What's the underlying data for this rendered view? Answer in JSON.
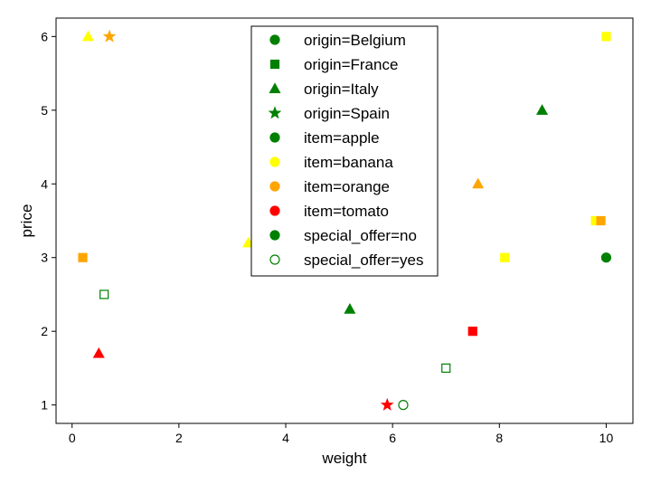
{
  "chart_data": {
    "type": "scatter",
    "xlabel": "weight",
    "ylabel": "price",
    "xlim": [
      -0.3,
      10.5
    ],
    "ylim": [
      0.75,
      6.25
    ],
    "xticks": [
      "0",
      "2",
      "4",
      "6",
      "8",
      "10"
    ],
    "yticks": [
      "1",
      "2",
      "3",
      "4",
      "5",
      "6"
    ],
    "grid": false,
    "legend_position": "top-center",
    "colors": {
      "apple": "#008000",
      "banana": "#ffff00",
      "orange": "#ffa500",
      "tomato": "#ff0000"
    },
    "legend": [
      {
        "label": "origin=Belgium",
        "marker": "circle",
        "color": "#008000",
        "filled": true
      },
      {
        "label": "origin=France",
        "marker": "square",
        "color": "#008000",
        "filled": true
      },
      {
        "label": "origin=Italy",
        "marker": "triangle",
        "color": "#008000",
        "filled": true
      },
      {
        "label": "origin=Spain",
        "marker": "star",
        "color": "#008000",
        "filled": true
      },
      {
        "label": "item=apple",
        "marker": "circle",
        "color": "#008000",
        "filled": true
      },
      {
        "label": "item=banana",
        "marker": "circle",
        "color": "#ffff00",
        "filled": true
      },
      {
        "label": "item=orange",
        "marker": "circle",
        "color": "#ffa500",
        "filled": true
      },
      {
        "label": "item=tomato",
        "marker": "circle",
        "color": "#ff0000",
        "filled": true
      },
      {
        "label": "special_offer=no",
        "marker": "circle",
        "color": "#008000",
        "filled": true
      },
      {
        "label": "special_offer=yes",
        "marker": "circle",
        "color": "#008000",
        "filled": false
      }
    ],
    "points": [
      {
        "x": 0.3,
        "y": 6.0,
        "item": "banana",
        "origin": "Italy",
        "special_offer": "no"
      },
      {
        "x": 0.7,
        "y": 6.0,
        "item": "orange",
        "origin": "Spain",
        "special_offer": "no"
      },
      {
        "x": 0.2,
        "y": 3.0,
        "item": "orange",
        "origin": "France",
        "special_offer": "no"
      },
      {
        "x": 0.6,
        "y": 2.5,
        "item": "apple",
        "origin": "France",
        "special_offer": "yes"
      },
      {
        "x": 0.5,
        "y": 1.7,
        "item": "tomato",
        "origin": "Italy",
        "special_offer": "no"
      },
      {
        "x": 3.3,
        "y": 3.2,
        "item": "banana",
        "origin": "Italy",
        "special_offer": "no"
      },
      {
        "x": 5.2,
        "y": 2.3,
        "item": "apple",
        "origin": "Italy",
        "special_offer": "no"
      },
      {
        "x": 5.9,
        "y": 1.0,
        "item": "tomato",
        "origin": "Spain",
        "special_offer": "no"
      },
      {
        "x": 6.2,
        "y": 1.0,
        "item": "apple",
        "origin": "Belgium",
        "special_offer": "yes"
      },
      {
        "x": 7.0,
        "y": 1.5,
        "item": "apple",
        "origin": "France",
        "special_offer": "yes"
      },
      {
        "x": 7.5,
        "y": 2.0,
        "item": "tomato",
        "origin": "France",
        "special_offer": "no"
      },
      {
        "x": 7.6,
        "y": 4.0,
        "item": "orange",
        "origin": "Italy",
        "special_offer": "no"
      },
      {
        "x": 8.1,
        "y": 3.0,
        "item": "banana",
        "origin": "France",
        "special_offer": "no"
      },
      {
        "x": 8.8,
        "y": 5.0,
        "item": "apple",
        "origin": "Italy",
        "special_offer": "no"
      },
      {
        "x": 9.8,
        "y": 3.5,
        "item": "banana",
        "origin": "France",
        "special_offer": "no"
      },
      {
        "x": 9.9,
        "y": 3.5,
        "item": "orange",
        "origin": "France",
        "special_offer": "no"
      },
      {
        "x": 10.0,
        "y": 3.0,
        "item": "apple",
        "origin": "Belgium",
        "special_offer": "no"
      },
      {
        "x": 10.0,
        "y": 6.0,
        "item": "banana",
        "origin": "France",
        "special_offer": "no"
      }
    ]
  }
}
